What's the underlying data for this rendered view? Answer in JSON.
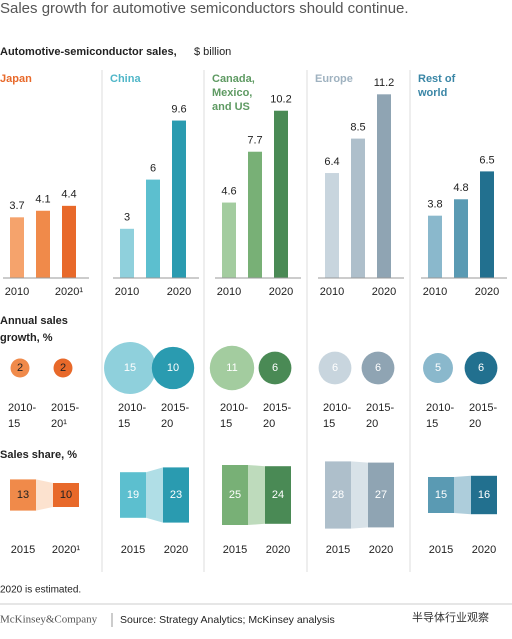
{
  "header": {
    "title": "Sales growth for automotive semiconductors should continue.",
    "subtitle_bold": "Automotive-semiconductor sales,",
    "subtitle_rest": "$ billion"
  },
  "sections": {
    "growth": [
      "Annual sales",
      "growth, %"
    ],
    "share": "Sales share, %"
  },
  "regions": [
    {
      "name": [
        "Japan"
      ],
      "text_color": "#e8692a",
      "colors": [
        "#f5a36c",
        "#f08a4a",
        "#e8692a"
      ],
      "sales": [
        3.7,
        4.1,
        4.4
      ],
      "year_labels": [
        "2010",
        "2020¹"
      ],
      "growth": [
        2,
        2
      ],
      "growth_labels": [
        [
          "2010-",
          "15"
        ],
        [
          "2015-",
          "20¹"
        ]
      ],
      "share": [
        13,
        10
      ],
      "share_labels": [
        "2015",
        "2020¹"
      ]
    },
    {
      "name": [
        "China"
      ],
      "text_color": "#4fb6c8",
      "colors": [
        "#8fd0dc",
        "#5cbfcf",
        "#2a9bb0"
      ],
      "sales": [
        3.0,
        6.0,
        9.6
      ],
      "year_labels": [
        "2010",
        "2020"
      ],
      "growth": [
        15,
        10
      ],
      "growth_labels": [
        [
          "2010-",
          "15"
        ],
        [
          "2015-",
          "20"
        ]
      ],
      "share": [
        19,
        23
      ],
      "share_labels": [
        "2015",
        "2020"
      ]
    },
    {
      "name": [
        "Canada,",
        "Mexico,",
        "and US"
      ],
      "text_color": "#5e9a62",
      "colors": [
        "#a3cc9f",
        "#78b076",
        "#4a8a55"
      ],
      "sales": [
        4.6,
        7.7,
        10.2
      ],
      "year_labels": [
        "2010",
        "2020"
      ],
      "growth": [
        11,
        6
      ],
      "growth_labels": [
        [
          "2010-",
          "15"
        ],
        [
          "2015-",
          "20"
        ]
      ],
      "share": [
        25,
        24
      ],
      "share_labels": [
        "2015",
        "2020"
      ]
    },
    {
      "name": [
        "Europe"
      ],
      "text_color": "#9fb2c0",
      "colors": [
        "#c8d5de",
        "#aebfcb",
        "#8fa4b3"
      ],
      "sales": [
        6.4,
        8.5,
        11.2
      ],
      "year_labels": [
        "2010",
        "2020"
      ],
      "growth": [
        6,
        6
      ],
      "growth_labels": [
        [
          "2010-",
          "15"
        ],
        [
          "2015-",
          "20"
        ]
      ],
      "share": [
        28,
        27
      ],
      "share_labels": [
        "2015",
        "2020"
      ]
    },
    {
      "name": [
        "Rest of",
        "world"
      ],
      "text_color": "#3a86a6",
      "colors": [
        "#8ab8cc",
        "#5a9ab3",
        "#22708f"
      ],
      "sales": [
        3.8,
        4.8,
        6.5
      ],
      "year_labels": [
        "2010",
        "2020"
      ],
      "growth": [
        5,
        6
      ],
      "growth_labels": [
        [
          "2010-",
          "15"
        ],
        [
          "2015-",
          "20"
        ]
      ],
      "share": [
        15,
        16
      ],
      "share_labels": [
        "2015",
        "2020"
      ]
    }
  ],
  "footnote": "2020 is estimated.",
  "footer": {
    "brand": "McKinsey&Company",
    "source": "Source: Strategy Analytics; McKinsey analysis",
    "watermark": "半导体行业观察"
  }
}
